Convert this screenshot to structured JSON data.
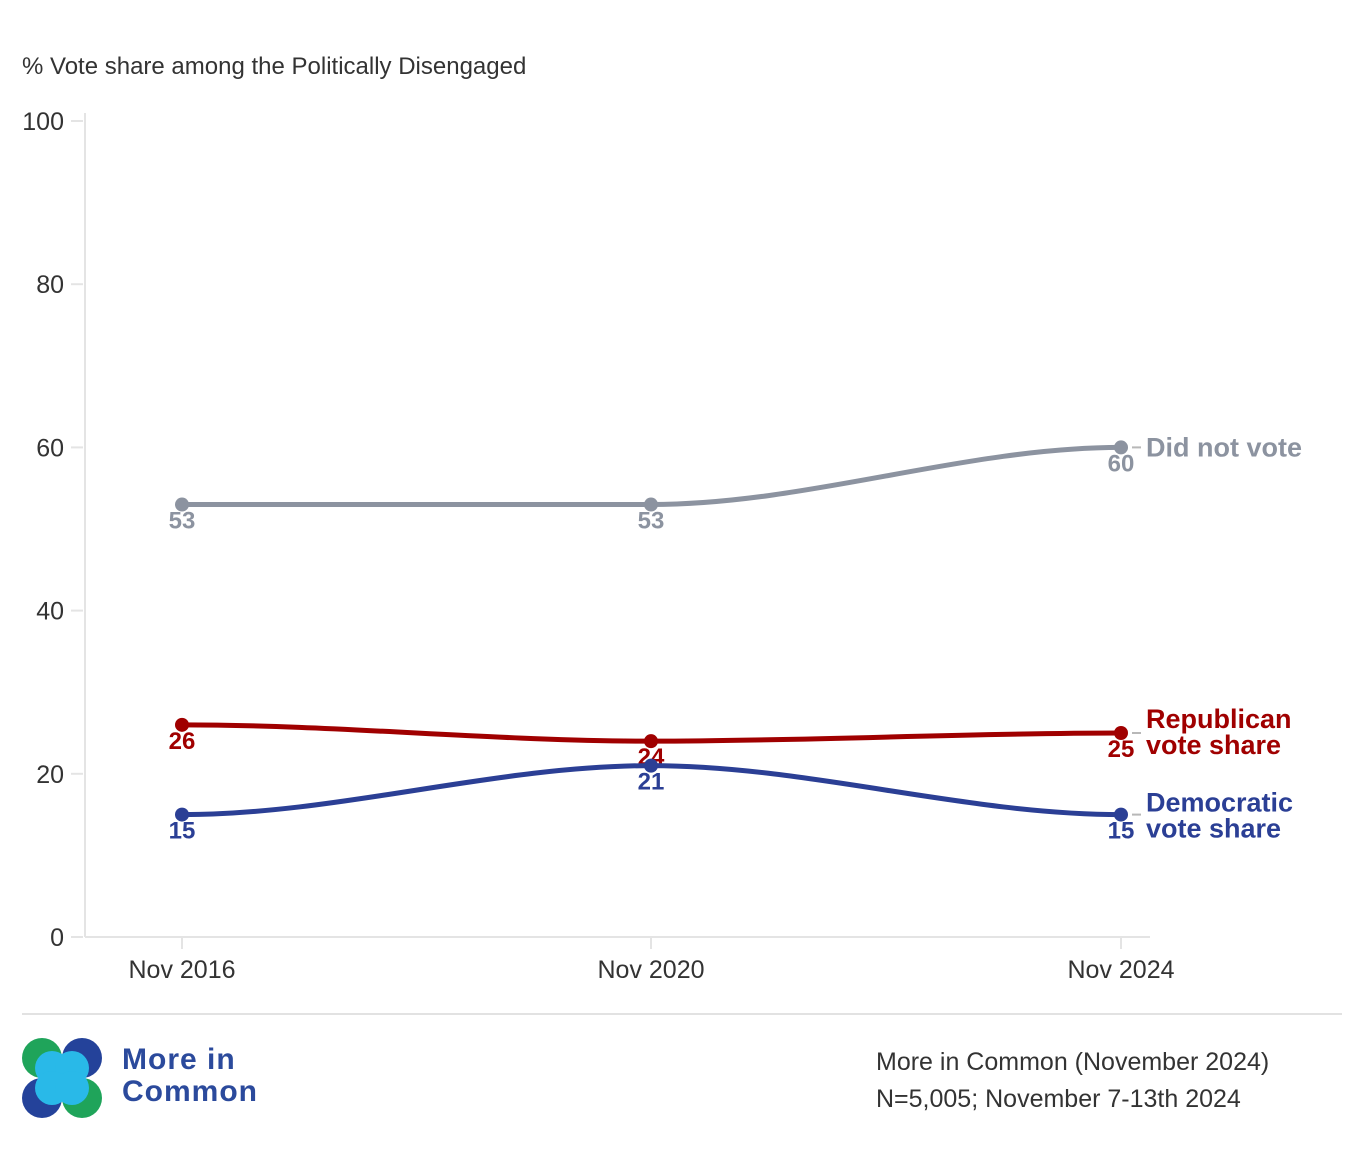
{
  "chart_data": {
    "type": "line",
    "ylabel": "% Vote share among the Politically Disengaged",
    "categories": [
      "Nov 2016",
      "Nov 2020",
      "Nov 2024"
    ],
    "ylim": [
      0,
      100
    ],
    "yticks": [
      0,
      20,
      40,
      60,
      80,
      100
    ],
    "grid": false,
    "series": [
      {
        "name": "Did not vote",
        "name_lines": [
          "Did not vote"
        ],
        "color": "#8c93a0",
        "values": [
          53,
          53,
          60
        ]
      },
      {
        "name": "Republican vote share",
        "name_lines": [
          "Republican",
          "vote share"
        ],
        "color": "#a00000",
        "values": [
          26,
          24,
          25
        ]
      },
      {
        "name": "Democratic vote share",
        "name_lines": [
          "Democratic",
          "vote share"
        ],
        "color": "#2b3f95",
        "values": [
          15,
          21,
          15
        ]
      }
    ]
  },
  "footer": {
    "brand_line1": "More in",
    "brand_line2": "Common",
    "source_line1": "More in Common (November 2024)",
    "source_line2": "N=5,005; November 7-13th 2024"
  },
  "colors": {
    "brand": "#2b4a9c",
    "logo_green": "#1fa45a",
    "logo_blue": "#24429a",
    "logo_cyan": "#29b9e8"
  }
}
